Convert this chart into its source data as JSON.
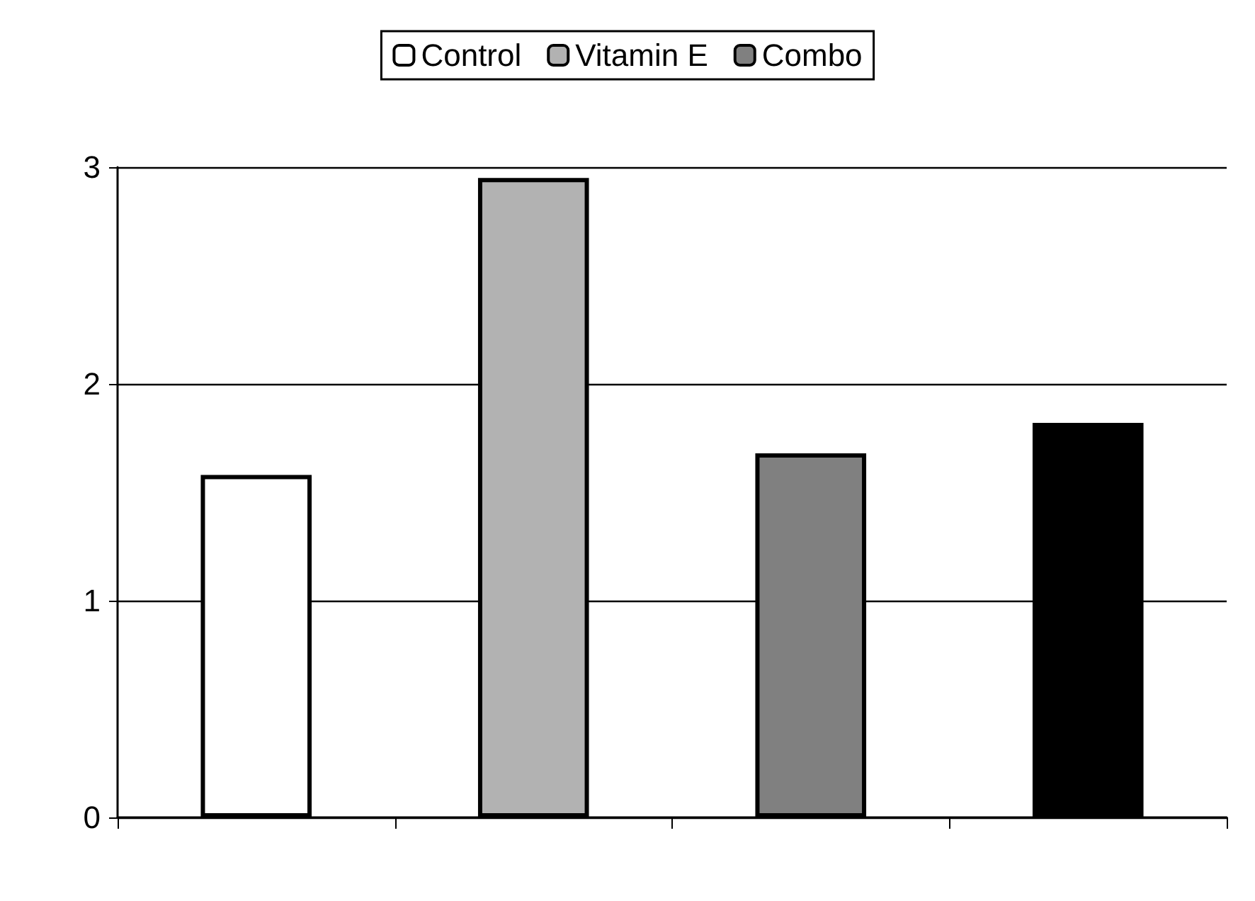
{
  "chart_data": {
    "type": "bar",
    "categories": [
      null,
      null,
      null,
      null
    ],
    "series": [
      {
        "name": "Control",
        "color": "#ffffff",
        "values": [
          1.58,
          null,
          null,
          null
        ]
      },
      {
        "name": "Vitamin E",
        "color": "#b2b2b2",
        "values": [
          null,
          2.95,
          null,
          null
        ]
      },
      {
        "name": "Combo",
        "color": "#808080",
        "values": [
          null,
          null,
          1.68,
          null
        ]
      },
      {
        "color": "#000000",
        "values": [
          null,
          null,
          null,
          1.82
        ]
      }
    ],
    "ylim": [
      0,
      3
    ],
    "yticks": [
      0,
      1,
      2,
      3
    ],
    "grid": "y",
    "legend": "top"
  }
}
